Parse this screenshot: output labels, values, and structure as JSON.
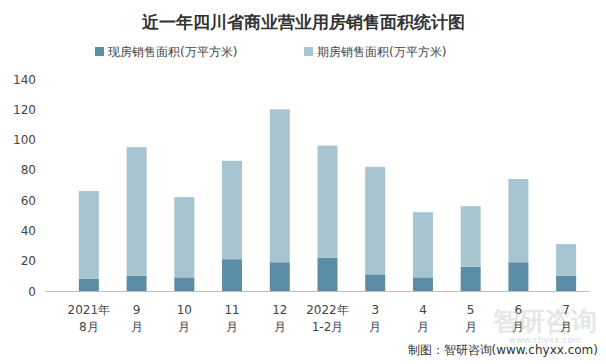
{
  "chart_data": {
    "type": "bar",
    "stacked": true,
    "title": "近一年四川省商业营业用房销售面积统计图",
    "categories": [
      "2021年8月",
      "9月",
      "10月",
      "11月",
      "12月",
      "2022年1-2月",
      "3月",
      "4月",
      "5月",
      "6月",
      "7月"
    ],
    "series": [
      {
        "name": "现房销售面积(万平方米)",
        "color": "#5b8ea6",
        "values": [
          8,
          10,
          9,
          21,
          19,
          22,
          11,
          9,
          16,
          19,
          10
        ]
      },
      {
        "name": "期房销售面积(万平方米)",
        "color": "#a7c5d1",
        "values": [
          58,
          85,
          53,
          65,
          101,
          74,
          71,
          43,
          40,
          55,
          21
        ]
      }
    ],
    "ylim": [
      0,
      140
    ],
    "yticks": [
      0,
      20,
      40,
      60,
      80,
      100,
      120,
      140
    ],
    "grid": false,
    "legend": "top",
    "source": "制图：智研咨询(www.chyxx.com)",
    "watermark": "智研咨询",
    "watermark_url": "www.chyxx.com"
  }
}
